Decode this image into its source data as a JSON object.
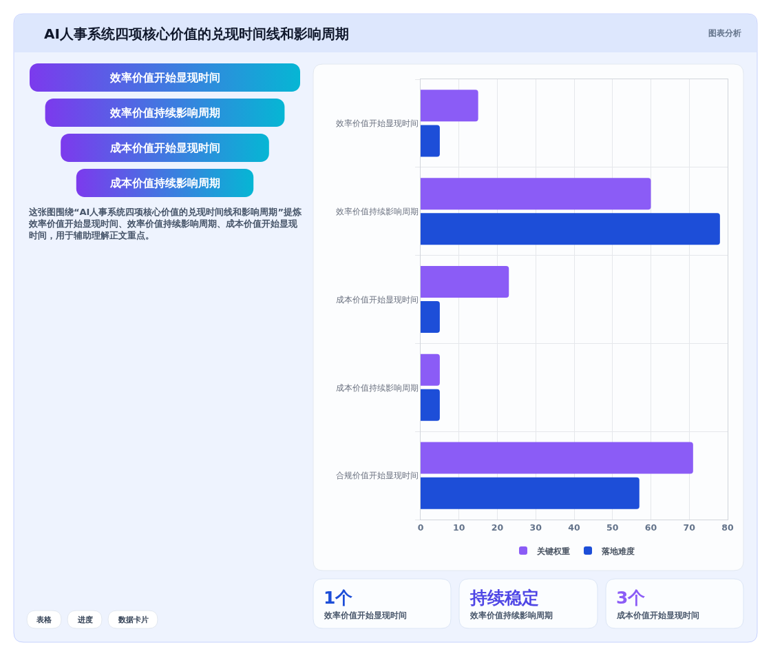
{
  "chart_data": [
    {
      "type": "other",
      "title": "AI人事系统四项核心价值的兑现时间线和影响周期",
      "annotations": [
        "图表分析"
      ]
    },
    {
      "type": "other",
      "categories": [
        "效率价值开始显现时间",
        "效率价值持续影响周期",
        "成本价值开始显现时间",
        "成本价值持续影响周期"
      ],
      "annotations": [
        "这张图围绕“AI人事系统四项核心价值的兑现时间线和影响周期”提炼效率价值开始显现时间、效率价值持续影响周期、成本价值开始显现时间，用于辅助理解正文重点。"
      ]
    },
    {
      "type": "bar",
      "orientation": "horizontal",
      "categories": [
        "效率价值开始显现时间",
        "效率价值持续影响周期",
        "成本价值开始显现时间",
        "成本价值持续影响周期",
        "合规价值开始显现时间"
      ],
      "series": [
        {
          "name": "关键权重",
          "color": "#8b5cf6",
          "values": [
            15,
            60,
            23,
            5,
            71
          ]
        },
        {
          "name": "落地难度",
          "color": "#1d4ed8",
          "values": [
            5,
            78,
            5,
            5,
            57
          ]
        }
      ],
      "xlim": [
        0,
        80
      ],
      "xticks": [
        0,
        10,
        20,
        30,
        40,
        50,
        60,
        70,
        80
      ],
      "grid": true,
      "legend": "bottom"
    },
    {
      "type": "other",
      "title": "1个",
      "subtitle": "效率价值开始显现时间"
    },
    {
      "type": "other",
      "title": "持续稳定",
      "subtitle": "效率价值持续影响周期"
    },
    {
      "type": "other",
      "title": "3个",
      "subtitle": "成本价值开始显现时间"
    },
    {
      "type": "other",
      "categories": [
        "表格",
        "进度",
        "数据卡片"
      ]
    }
  ]
}
